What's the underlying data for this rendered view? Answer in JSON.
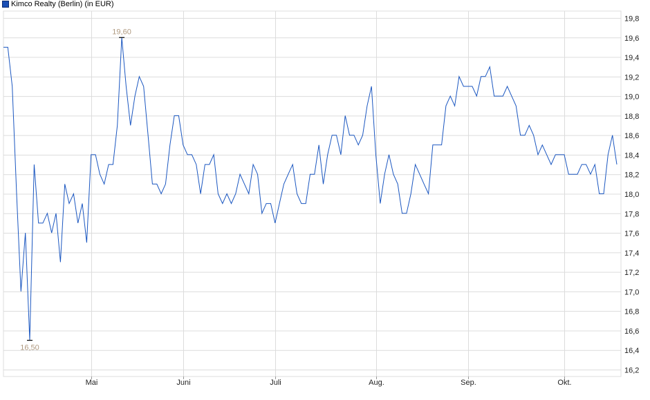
{
  "legend": {
    "label": "Kimco Realty (Berlin) (in EUR)",
    "color": "#1a56c0"
  },
  "chart_data": {
    "type": "line",
    "title": "",
    "series": [
      {
        "name": "Kimco Realty (Berlin) (in EUR)",
        "values": [
          19.5,
          19.5,
          19.1,
          18.0,
          17.0,
          17.6,
          16.5,
          18.3,
          17.7,
          17.7,
          17.8,
          17.6,
          17.8,
          17.3,
          18.1,
          17.9,
          18.0,
          17.7,
          17.9,
          17.5,
          18.4,
          18.4,
          18.2,
          18.1,
          18.3,
          18.3,
          18.7,
          19.6,
          19.1,
          18.7,
          19.0,
          19.2,
          19.1,
          18.6,
          18.1,
          18.1,
          18.0,
          18.1,
          18.5,
          18.8,
          18.8,
          18.5,
          18.4,
          18.4,
          18.3,
          18.0,
          18.3,
          18.3,
          18.4,
          18.0,
          17.9,
          18.0,
          17.9,
          18.0,
          18.2,
          18.1,
          18.0,
          18.3,
          18.2,
          17.8,
          17.9,
          17.9,
          17.7,
          17.9,
          18.1,
          18.2,
          18.3,
          18.0,
          17.9,
          17.9,
          18.2,
          18.2,
          18.5,
          18.1,
          18.4,
          18.6,
          18.6,
          18.4,
          18.8,
          18.6,
          18.6,
          18.5,
          18.6,
          18.9,
          19.1,
          18.4,
          17.9,
          18.2,
          18.4,
          18.2,
          18.1,
          17.8,
          17.8,
          18.0,
          18.3,
          18.2,
          18.1,
          18.0,
          18.5,
          18.5,
          18.5,
          18.9,
          19.0,
          18.9,
          19.2,
          19.1,
          19.1,
          19.1,
          19.0,
          19.2,
          19.2,
          19.3,
          19.0,
          19.0,
          19.0,
          19.1,
          19.0,
          18.9,
          18.6,
          18.6,
          18.7,
          18.6,
          18.4,
          18.5,
          18.4,
          18.3,
          18.4,
          18.4,
          18.4,
          18.2,
          18.2,
          18.2,
          18.3,
          18.3,
          18.2,
          18.3,
          18.0,
          18.0,
          18.4,
          18.6,
          18.3
        ]
      }
    ],
    "x_ticks": [
      {
        "label": "Mai",
        "index": 20
      },
      {
        "label": "Juni",
        "index": 41
      },
      {
        "label": "Juli",
        "index": 62
      },
      {
        "label": "Aug.",
        "index": 85
      },
      {
        "label": "Sep.",
        "index": 106
      },
      {
        "label": "Okt.",
        "index": 128
      }
    ],
    "y_ticks": [
      "16,2",
      "16,4",
      "16,6",
      "16,8",
      "17,0",
      "17,2",
      "17,4",
      "17,6",
      "17,8",
      "18,0",
      "18,2",
      "18,4",
      "18,6",
      "18,8",
      "19,0",
      "19,2",
      "19,4",
      "19,6",
      "19,8"
    ],
    "ylim": [
      16.2,
      19.8
    ],
    "grid": true,
    "annotations": [
      {
        "label": "19,60",
        "value": 19.6,
        "index": 27,
        "type": "high"
      },
      {
        "label": "16,50",
        "value": 16.5,
        "index": 6,
        "type": "low"
      }
    ],
    "annotation_color": "#b09a80",
    "grid_color": "#dcdcdc"
  }
}
